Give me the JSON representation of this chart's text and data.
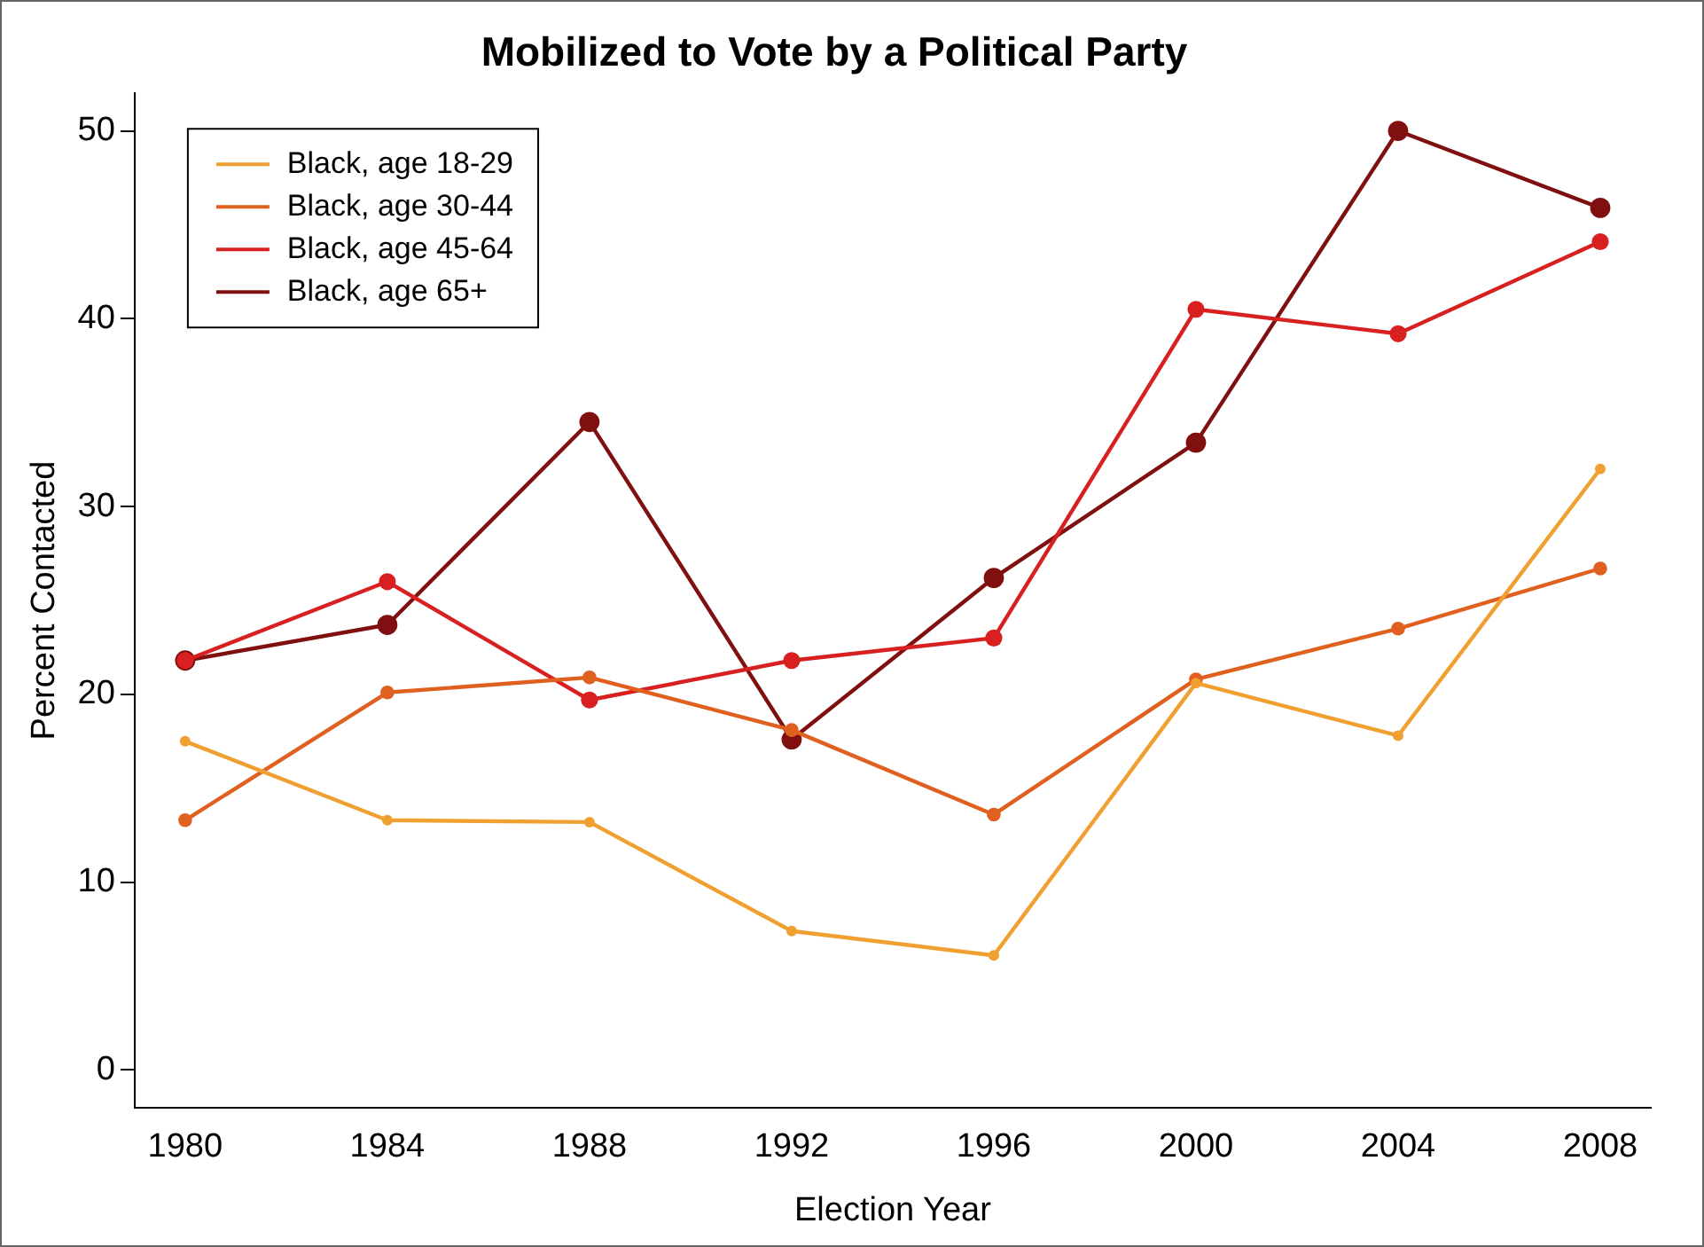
{
  "chart_data": {
    "type": "line",
    "title": "Mobilized to Vote by a Political Party",
    "xlabel": "Election Year",
    "ylabel": "Percent Contacted",
    "x": [
      1980,
      1984,
      1988,
      1992,
      1996,
      2000,
      2004,
      2008
    ],
    "xlim": [
      1979,
      2009
    ],
    "xticks": [
      1980,
      1984,
      1988,
      1992,
      1996,
      2000,
      2004,
      2008
    ],
    "ylim": [
      -2,
      52
    ],
    "yticks": [
      0,
      10,
      20,
      30,
      40,
      50
    ],
    "grid": false,
    "legend": "top left",
    "marker": "circle",
    "line_style": "solid",
    "series": [
      {
        "name": "Black, age 18-29",
        "color": "#f0a030",
        "values": [
          17.5,
          13.3,
          13.2,
          7.4,
          6.1,
          20.6,
          17.8,
          32.0
        ]
      },
      {
        "name": "Black, age 30-44",
        "color": "#e06020",
        "values": [
          13.3,
          20.1,
          20.9,
          18.1,
          13.6,
          20.8,
          23.5,
          26.7
        ]
      },
      {
        "name": "Black, age 45-64",
        "color": "#d82020",
        "values": [
          21.8,
          26.0,
          19.7,
          21.8,
          23.0,
          40.5,
          39.2,
          44.1
        ]
      },
      {
        "name": "Black, age 65+",
        "color": "#801010",
        "values": [
          21.8,
          23.7,
          34.5,
          17.6,
          26.2,
          33.4,
          50.0,
          45.9
        ]
      }
    ]
  }
}
